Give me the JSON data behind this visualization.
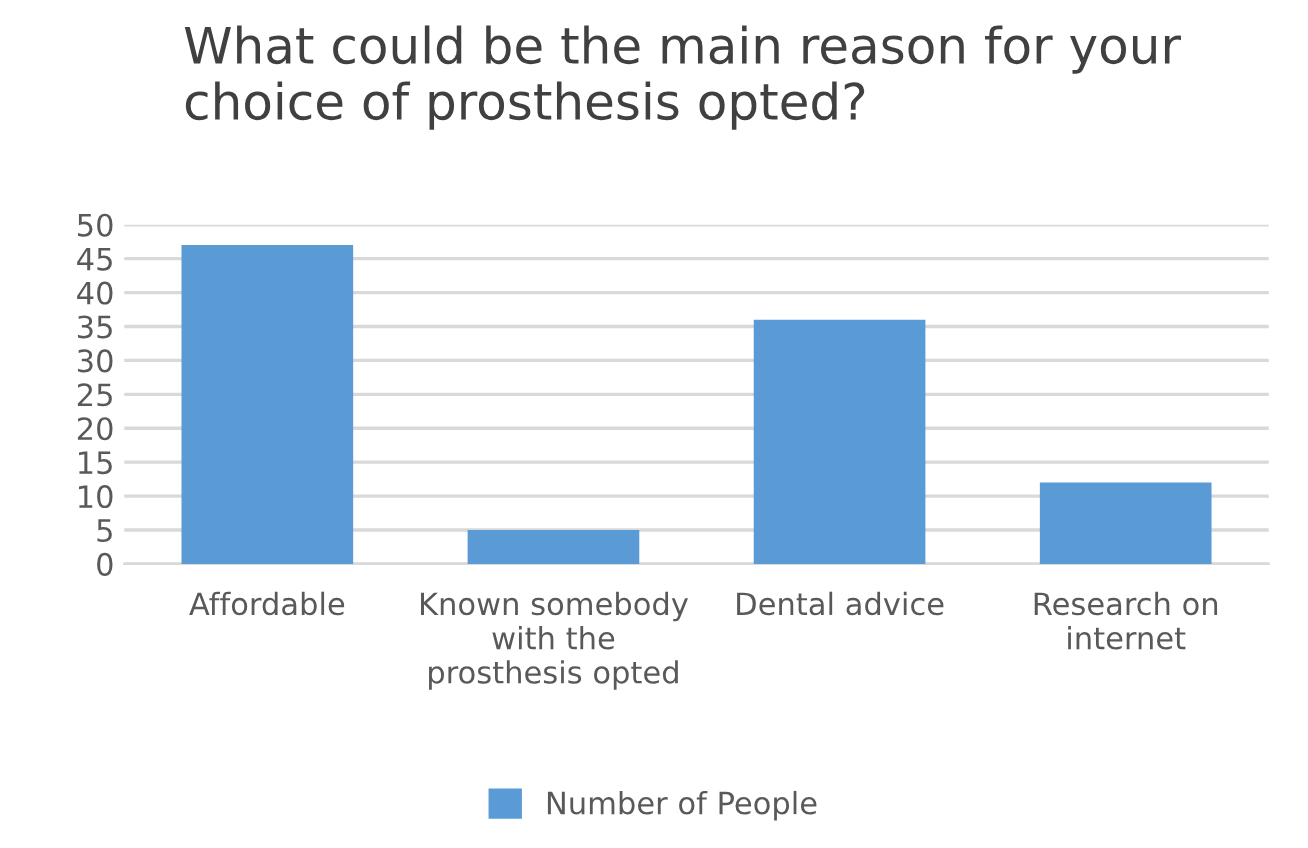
{
  "chart_data": {
    "type": "bar",
    "title": "What could be the main reason for your choice of prosthesis opted?",
    "categories": [
      "Affordable",
      "Known somebody\nwith the\nprosthesis opted",
      "Dental advice",
      "Research on\ninternet"
    ],
    "series": [
      {
        "name": "Number of People",
        "color": "#5b9bd5",
        "values": [
          47,
          5,
          36,
          12
        ]
      }
    ],
    "ylim": [
      0,
      50
    ],
    "yticks": [
      0,
      5,
      10,
      15,
      20,
      25,
      30,
      35,
      40,
      45,
      50
    ],
    "grid": "y",
    "legend": "bottom"
  }
}
